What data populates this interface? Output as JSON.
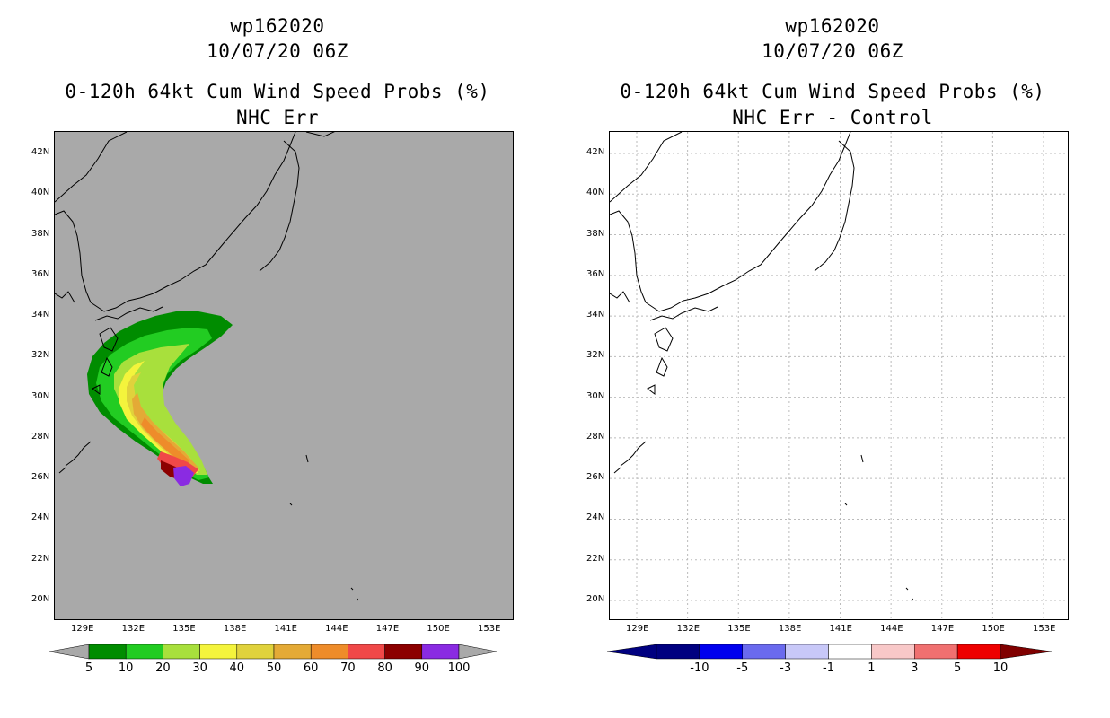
{
  "left": {
    "storm": "wp162020",
    "datetime": "10/07/20 06Z",
    "product": "0-120h 64kt Cum Wind Speed Probs (%)",
    "subtitle": "NHC Err",
    "lat_ticks": [
      "42N",
      "40N",
      "38N",
      "36N",
      "34N",
      "32N",
      "30N",
      "28N",
      "26N",
      "24N",
      "22N",
      "20N"
    ],
    "lon_ticks": [
      "129E",
      "132E",
      "135E",
      "138E",
      "141E",
      "144E",
      "147E",
      "150E",
      "153E"
    ],
    "colorbar": {
      "labels": [
        "5",
        "10",
        "20",
        "30",
        "40",
        "50",
        "60",
        "70",
        "80",
        "90",
        "100"
      ],
      "colors": [
        "#008c00",
        "#22cc22",
        "#a8e03c",
        "#f4f43c",
        "#e0d23c",
        "#e4aa36",
        "#ee8c2a",
        "#f04848",
        "#8c0000",
        "#8a2be2"
      ],
      "end_color": "#a9a9a9"
    },
    "background_color": "#a9a9a9"
  },
  "right": {
    "storm": "wp162020",
    "datetime": "10/07/20 06Z",
    "product": "0-120h 64kt Cum Wind Speed Probs (%)",
    "subtitle": "NHC Err - Control",
    "lat_ticks": [
      "42N",
      "40N",
      "38N",
      "36N",
      "34N",
      "32N",
      "30N",
      "28N",
      "26N",
      "24N",
      "22N",
      "20N"
    ],
    "lon_ticks": [
      "129E",
      "132E",
      "135E",
      "138E",
      "141E",
      "144E",
      "147E",
      "150E",
      "153E"
    ],
    "colorbar": {
      "labels": [
        "-10",
        "-5",
        "-3",
        "-1",
        "1",
        "3",
        "5",
        "10"
      ],
      "colors": [
        "#000080",
        "#0000ee",
        "#6a6aee",
        "#c8c8f8",
        "#ffffff",
        "#f8c8c8",
        "#f07070",
        "#ee0000"
      ],
      "start_color": "#000080",
      "end_color": "#800000"
    },
    "background_color": "#ffffff"
  }
}
